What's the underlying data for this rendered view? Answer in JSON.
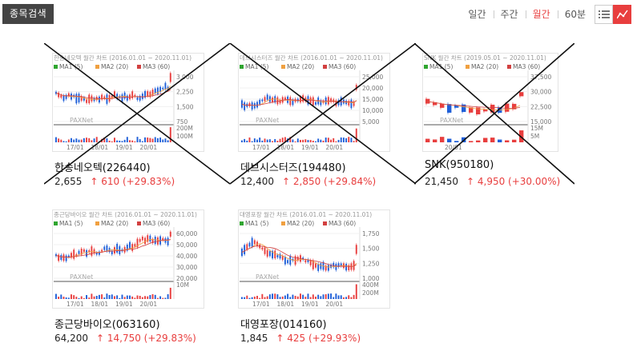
{
  "toolbar": {
    "search_label": "종목검색",
    "periods": [
      "일간",
      "주간",
      "월간",
      "60분"
    ],
    "active_period": "월간"
  },
  "colors": {
    "up": "#e83e3e",
    "down": "#1f5fd8",
    "ma1": "#2fa52f",
    "ma2": "#f0a040",
    "ma3": "#d24040"
  },
  "legend": {
    "ma1": "MA1 (5)",
    "ma2": "MA2 (20)",
    "ma3": "MA3 (60)"
  },
  "watermark": "PAXNet",
  "cards": [
    {
      "title": "한송네오텍 월간 차트 (2016.01.01 ~ 2020.11.01)",
      "name": "한송네오텍(226440)",
      "price": "2,655",
      "change": "↑ 610 (+29.83%)",
      "crossed": true,
      "price_ticks": [
        "3,000",
        "2,250",
        "1,500",
        "750"
      ],
      "vol_ticks": [
        "200M",
        "100M"
      ],
      "x_ticks": [
        "17/01",
        "18/01",
        "19/01",
        "20/01"
      ]
    },
    {
      "title": "데브시스터즈 월간 차트 (2016.01.01 ~ 2020.11.01)",
      "name": "데브시스터즈(194480)",
      "price": "12,400",
      "change": "↑ 2,850 (+29.84%)",
      "crossed": true,
      "price_ticks": [
        "25,000",
        "20,000",
        "15,000",
        "10,000",
        "5,000"
      ],
      "vol_ticks": [],
      "x_ticks": [
        "17/01",
        "18/01",
        "19/01",
        "20/01"
      ]
    },
    {
      "title": "SNK 월간 차트 (2019.05.01 ~ 2020.11.01)",
      "name": "SNK(950180)",
      "price": "21,450",
      "change": "↑ 4,950 (+30.00%)",
      "crossed": true,
      "price_ticks": [
        "37,500",
        "30,000",
        "22,500",
        "15,000"
      ],
      "vol_ticks": [
        "15M",
        "5M"
      ],
      "x_ticks": [
        "20/01"
      ]
    },
    {
      "title": "종근당바이오 월간 차트 (2016.01.01 ~ 2020.11.01)",
      "name": "종근당바이오(063160)",
      "price": "64,200",
      "change": "↑ 14,750 (+29.83%)",
      "crossed": false,
      "price_ticks": [
        "60,000",
        "50,000",
        "40,000",
        "30,000",
        "20,000"
      ],
      "vol_ticks": [
        "10M"
      ],
      "x_ticks": [
        "17/01",
        "18/01",
        "19/01",
        "20/01"
      ]
    },
    {
      "title": "대영포장 월간 차트 (2016.01.01 ~ 2020.11.01)",
      "name": "대영포장(014160)",
      "price": "1,845",
      "change": "↑ 425 (+29.93%)",
      "crossed": false,
      "price_ticks": [
        "1,750",
        "1,500",
        "1,250",
        "1,000"
      ],
      "vol_ticks": [
        "400M",
        "200M"
      ],
      "x_ticks": [
        "17/01",
        "18/01",
        "19/01",
        "20/01"
      ]
    }
  ]
}
